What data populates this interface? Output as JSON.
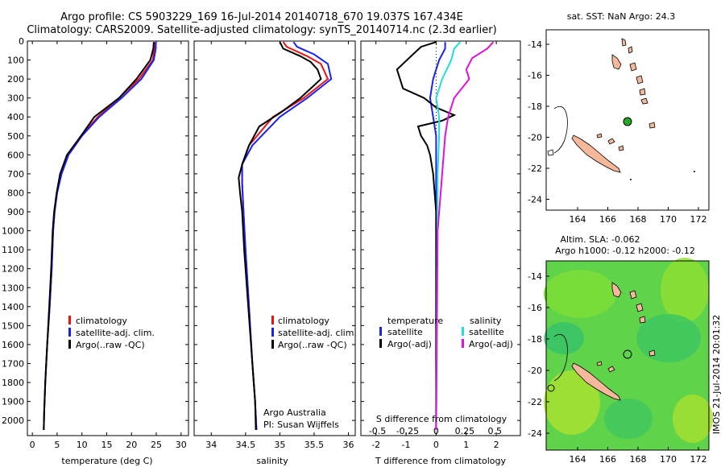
{
  "header": {
    "title_line1": "Argo profile: CS 5903229_169 16-Jul-2014 20140718_670 19.037S 167.434E",
    "title_line2": "Climatology: CARS2009. Satellite-adjusted climatology: synTS_20140714.nc (2.3d earlier)"
  },
  "colors": {
    "climatology": "#ee1111",
    "satellite": "#1a22ee",
    "argo": "#000000",
    "sat_salinity": "#22dddd",
    "argo_salinity": "#e010e0",
    "land": "#f5b89a",
    "float_marker": "#22aa22"
  },
  "chart_data": [
    {
      "type": "line",
      "id": "temperature-profile",
      "xlabel": "temperature (deg C)",
      "xlim": [
        -1,
        31.5
      ],
      "xticks": [
        0,
        5,
        10,
        15,
        20,
        25,
        30
      ],
      "ylim": [
        0,
        2080
      ],
      "yticks": [
        0,
        100,
        200,
        300,
        400,
        500,
        600,
        700,
        800,
        900,
        1000,
        1100,
        1200,
        1300,
        1400,
        1500,
        1600,
        1700,
        1800,
        1900,
        2000
      ],
      "legend": [
        "climatology",
        "satellite-adj. clim.",
        "Argo(..raw -QC)"
      ],
      "legend_position": "lower-center",
      "series": [
        {
          "name": "climatology",
          "color": "#ee1111",
          "points": [
            [
              24.6,
              5
            ],
            [
              24.6,
              40
            ],
            [
              24.3,
              100
            ],
            [
              21.5,
              200
            ],
            [
              17.5,
              300
            ],
            [
              13.2,
              400
            ],
            [
              9.8,
              500
            ],
            [
              7.2,
              600
            ],
            [
              5.8,
              700
            ],
            [
              5.0,
              800
            ],
            [
              4.5,
              900
            ],
            [
              4.2,
              1000
            ],
            [
              3.9,
              1200
            ],
            [
              3.5,
              1400
            ],
            [
              3.0,
              1600
            ],
            [
              2.6,
              1800
            ],
            [
              2.4,
              1950
            ],
            [
              2.3,
              2050
            ]
          ]
        },
        {
          "name": "satellite-adj. clim.",
          "color": "#1a22ee",
          "points": [
            [
              24.9,
              5
            ],
            [
              24.9,
              40
            ],
            [
              24.5,
              100
            ],
            [
              22.0,
              200
            ],
            [
              18.0,
              300
            ],
            [
              13.5,
              400
            ],
            [
              10.0,
              500
            ],
            [
              7.3,
              600
            ],
            [
              5.9,
              700
            ],
            [
              5.0,
              800
            ],
            [
              4.5,
              900
            ],
            [
              4.2,
              1000
            ],
            [
              3.9,
              1200
            ],
            [
              3.5,
              1400
            ],
            [
              3.0,
              1600
            ],
            [
              2.6,
              1800
            ],
            [
              2.4,
              1950
            ],
            [
              2.3,
              2050
            ]
          ]
        },
        {
          "name": "Argo(..raw -QC)",
          "color": "#000000",
          "points": [
            [
              24.5,
              5
            ],
            [
              24.4,
              40
            ],
            [
              23.8,
              100
            ],
            [
              21.0,
              200
            ],
            [
              17.5,
              300
            ],
            [
              12.5,
              400
            ],
            [
              9.8,
              500
            ],
            [
              7.0,
              600
            ],
            [
              5.6,
              700
            ],
            [
              4.9,
              800
            ],
            [
              4.4,
              900
            ],
            [
              4.1,
              1000
            ],
            [
              3.8,
              1200
            ],
            [
              3.4,
              1400
            ],
            [
              3.0,
              1600
            ],
            [
              2.6,
              1800
            ],
            [
              2.4,
              1950
            ],
            [
              2.3,
              2050
            ]
          ]
        }
      ],
      "annotations": [
        "climatology",
        "satellite-adj. clim.",
        "Argo(..raw -QC)"
      ]
    },
    {
      "type": "line",
      "id": "salinity-profile",
      "xlabel": "salinity",
      "xlim": [
        33.75,
        36.1
      ],
      "xticks": [
        34,
        34.5,
        35,
        35.5,
        36
      ],
      "ylim": [
        0,
        2080
      ],
      "legend": [
        "climatology",
        "satellite-adj. clim.",
        "Argo(..raw -QC)"
      ],
      "series": [
        {
          "name": "climatology",
          "color": "#ee1111",
          "points": [
            [
              35.05,
              5
            ],
            [
              35.1,
              30
            ],
            [
              35.4,
              80
            ],
            [
              35.6,
              120
            ],
            [
              35.7,
              200
            ],
            [
              35.35,
              300
            ],
            [
              34.9,
              400
            ],
            [
              34.55,
              550
            ],
            [
              34.45,
              650
            ],
            [
              34.45,
              750
            ],
            [
              34.47,
              900
            ],
            [
              34.5,
              1100
            ],
            [
              34.55,
              1400
            ],
            [
              34.6,
              1700
            ],
            [
              34.64,
              1900
            ],
            [
              34.66,
              2050
            ]
          ]
        },
        {
          "name": "satellite-adj. clim.",
          "color": "#1a22ee",
          "points": [
            [
              35.2,
              5
            ],
            [
              35.25,
              30
            ],
            [
              35.5,
              70
            ],
            [
              35.7,
              120
            ],
            [
              35.75,
              200
            ],
            [
              35.4,
              300
            ],
            [
              35.0,
              400
            ],
            [
              34.6,
              550
            ],
            [
              34.45,
              650
            ],
            [
              34.45,
              750
            ],
            [
              34.47,
              900
            ],
            [
              34.5,
              1100
            ],
            [
              34.55,
              1400
            ],
            [
              34.6,
              1700
            ],
            [
              34.64,
              1900
            ],
            [
              34.66,
              2050
            ]
          ]
        },
        {
          "name": "Argo(..raw -QC)",
          "color": "#000000",
          "points": [
            [
              35.0,
              5
            ],
            [
              35.05,
              40
            ],
            [
              35.3,
              80
            ],
            [
              35.45,
              110
            ],
            [
              35.55,
              150
            ],
            [
              35.6,
              200
            ],
            [
              35.3,
              300
            ],
            [
              35.0,
              380
            ],
            [
              34.7,
              450
            ],
            [
              34.55,
              550
            ],
            [
              34.45,
              650
            ],
            [
              34.4,
              720
            ],
            [
              34.42,
              800
            ],
            [
              34.45,
              900
            ],
            [
              34.48,
              1100
            ],
            [
              34.52,
              1300
            ],
            [
              34.56,
              1500
            ],
            [
              34.6,
              1700
            ],
            [
              34.64,
              1900
            ],
            [
              34.65,
              2050
            ]
          ]
        }
      ],
      "annotations": [
        "Argo Australia",
        "PI: Susan Wijffels"
      ]
    },
    {
      "type": "line",
      "id": "difference-profile",
      "xlabel": "T difference from climatology",
      "xlabel_top": "S difference from climatology",
      "xlim": [
        -2.5,
        2.8
      ],
      "xticks": [
        -2,
        -1,
        0,
        1,
        2
      ],
      "sticks_label": [
        "-0.5",
        "-0.25",
        "0",
        "0.25",
        "0.5"
      ],
      "legend": {
        "temperature": [
          "satellite",
          "Argo(-adj)"
        ],
        "salinity": [
          "satellite",
          "Argo(-adj)"
        ]
      },
      "series": [
        {
          "name": "temperature satellite",
          "color": "#1a22ee",
          "points": [
            [
              0.3,
              5
            ],
            [
              0.3,
              40
            ],
            [
              0.1,
              100
            ],
            [
              -0.1,
              200
            ],
            [
              -0.2,
              300
            ],
            [
              -0.1,
              400
            ],
            [
              0,
              500
            ],
            [
              0,
              700
            ],
            [
              0,
              2050
            ]
          ]
        },
        {
          "name": "temperature Argo(-adj)",
          "color": "#000000",
          "points": [
            [
              0,
              5
            ],
            [
              -0.5,
              30
            ],
            [
              -0.7,
              60
            ],
            [
              -1.3,
              150
            ],
            [
              -1.1,
              250
            ],
            [
              -0.4,
              300
            ],
            [
              0,
              350
            ],
            [
              0.6,
              390
            ],
            [
              0.2,
              420
            ],
            [
              -0.6,
              450
            ],
            [
              -0.5,
              500
            ],
            [
              -0.3,
              550
            ],
            [
              -0.2,
              600
            ],
            [
              -0.1,
              700
            ],
            [
              0,
              900
            ],
            [
              0,
              2050
            ]
          ]
        },
        {
          "name": "salinity satellite",
          "color": "#22dddd",
          "points": [
            [
              0.8,
              5
            ],
            [
              0.6,
              40
            ],
            [
              0.5,
              100
            ],
            [
              0.2,
              200
            ],
            [
              0,
              300
            ],
            [
              0.1,
              400
            ],
            [
              0.1,
              500
            ],
            [
              0.05,
              700
            ],
            [
              0,
              2050
            ]
          ]
        },
        {
          "name": "salinity Argo(-adj)",
          "color": "#e010e0",
          "points": [
            [
              1.9,
              5
            ],
            [
              1.7,
              40
            ],
            [
              1.2,
              90
            ],
            [
              1.0,
              150
            ],
            [
              1.1,
              200
            ],
            [
              0.6,
              300
            ],
            [
              0.4,
              400
            ],
            [
              0.3,
              500
            ],
            [
              0.2,
              700
            ],
            [
              0.05,
              1000
            ],
            [
              0,
              2050
            ]
          ]
        }
      ]
    }
  ],
  "maps": {
    "top": {
      "title": "sat. SST: NaN Argo: 24.3",
      "xticks": [
        "164",
        "166",
        "168",
        "170",
        "172"
      ],
      "yticks": [
        "-14",
        "-16",
        "-18",
        "-20",
        "-22",
        "-24"
      ]
    },
    "bottom": {
      "title_line1": "Altim. SLA: -0.062",
      "title_line2": "Argo h1000: -0.12 h2000: -0.12",
      "xticks": [
        "164",
        "166",
        "168",
        "170",
        "172"
      ],
      "yticks": [
        "-14",
        "-16",
        "-18",
        "-20",
        "-22",
        "-24"
      ],
      "side_label": "IMOS 21-Jul-2014 20:01:32"
    }
  }
}
